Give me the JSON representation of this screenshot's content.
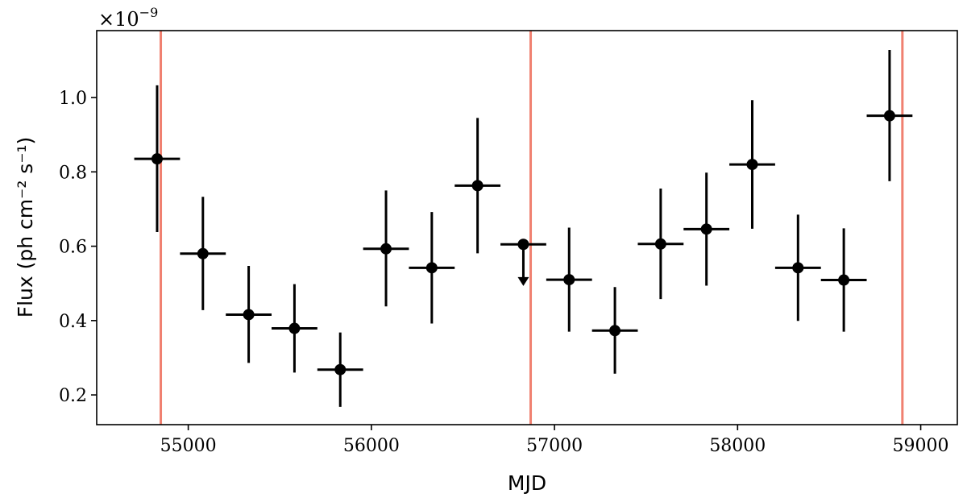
{
  "chart_data": {
    "type": "scatter",
    "title": "",
    "xlabel": "MJD",
    "ylabel": "Flux (ph cm⁻² s⁻¹)",
    "y_multiplier": "×10⁻⁹",
    "y_multiplier_base": "×10",
    "y_multiplier_exp": "−9",
    "xlim": [
      54500,
      59200
    ],
    "ylim": [
      0.12,
      1.18
    ],
    "xticks": [
      55000,
      56000,
      57000,
      58000,
      59000
    ],
    "xtick_labels": [
      "55000",
      "56000",
      "57000",
      "58000",
      "59000"
    ],
    "yticks": [
      0.2,
      0.4,
      0.6,
      0.8,
      1.0
    ],
    "ytick_labels": [
      "0.2",
      "0.4",
      "0.6",
      "0.8",
      "1.0"
    ],
    "grid": false,
    "marker_color": "#000000",
    "vline_color": "#f08070",
    "vertical_lines": [
      54850,
      56870,
      58900
    ],
    "points": [
      {
        "x": 54830,
        "y": 0.835,
        "xerr": 125,
        "ylo": 0.638,
        "yhi": 1.033,
        "upper_limit": false
      },
      {
        "x": 55080,
        "y": 0.58,
        "xerr": 125,
        "ylo": 0.428,
        "yhi": 0.733,
        "upper_limit": false
      },
      {
        "x": 55330,
        "y": 0.416,
        "xerr": 125,
        "ylo": 0.286,
        "yhi": 0.547,
        "upper_limit": false
      },
      {
        "x": 55580,
        "y": 0.379,
        "xerr": 125,
        "ylo": 0.26,
        "yhi": 0.498,
        "upper_limit": false
      },
      {
        "x": 55830,
        "y": 0.268,
        "xerr": 125,
        "ylo": 0.168,
        "yhi": 0.368,
        "upper_limit": false
      },
      {
        "x": 56080,
        "y": 0.593,
        "xerr": 125,
        "ylo": 0.438,
        "yhi": 0.75,
        "upper_limit": false
      },
      {
        "x": 56330,
        "y": 0.542,
        "xerr": 125,
        "ylo": 0.392,
        "yhi": 0.692,
        "upper_limit": false
      },
      {
        "x": 56580,
        "y": 0.763,
        "xerr": 125,
        "ylo": 0.581,
        "yhi": 0.945,
        "upper_limit": false
      },
      {
        "x": 56830,
        "y": 0.605,
        "xerr": 125,
        "ylo": 0.493,
        "yhi": 0.605,
        "upper_limit": true
      },
      {
        "x": 57080,
        "y": 0.51,
        "xerr": 125,
        "ylo": 0.37,
        "yhi": 0.65,
        "upper_limit": false
      },
      {
        "x": 57330,
        "y": 0.373,
        "xerr": 125,
        "ylo": 0.257,
        "yhi": 0.49,
        "upper_limit": false
      },
      {
        "x": 57580,
        "y": 0.606,
        "xerr": 125,
        "ylo": 0.458,
        "yhi": 0.755,
        "upper_limit": false
      },
      {
        "x": 57830,
        "y": 0.646,
        "xerr": 125,
        "ylo": 0.494,
        "yhi": 0.798,
        "upper_limit": false
      },
      {
        "x": 58080,
        "y": 0.82,
        "xerr": 125,
        "ylo": 0.647,
        "yhi": 0.993,
        "upper_limit": false
      },
      {
        "x": 58330,
        "y": 0.542,
        "xerr": 125,
        "ylo": 0.399,
        "yhi": 0.685,
        "upper_limit": false
      },
      {
        "x": 58580,
        "y": 0.509,
        "xerr": 125,
        "ylo": 0.37,
        "yhi": 0.648,
        "upper_limit": false
      },
      {
        "x": 58830,
        "y": 0.951,
        "xerr": 125,
        "ylo": 0.775,
        "yhi": 1.128,
        "upper_limit": false
      }
    ]
  }
}
